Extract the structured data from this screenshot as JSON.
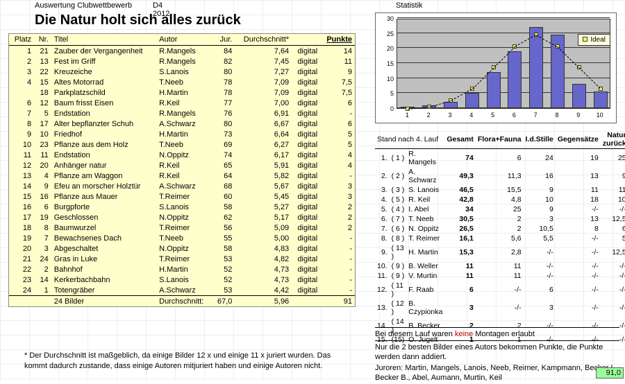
{
  "header": {
    "label": "Auswertung Clubwettbewerb",
    "period": "D4 2012"
  },
  "title": "Die Natur holt sich alles zurück",
  "main": {
    "cols": [
      "Platz",
      "Nr.",
      "Titel",
      "Autor",
      "Jur.",
      "Durchschnitt*",
      "",
      "Punkte"
    ],
    "rows": [
      {
        "p": "1",
        "n": "21",
        "t": "Zauber der Vergangenheit",
        "a": "R.Mangels",
        "j": "84",
        "d": "7,64",
        "m": "digital",
        "pk": "14"
      },
      {
        "p": "2",
        "n": "13",
        "t": "Fest im Griff",
        "a": "R.Mangels",
        "j": "82",
        "d": "7,45",
        "m": "digital",
        "pk": "11"
      },
      {
        "p": "3",
        "n": "22",
        "t": "Kreuzeiche",
        "a": "S.Lanois",
        "j": "80",
        "d": "7,27",
        "m": "digital",
        "pk": "9"
      },
      {
        "p": "4",
        "n": "15",
        "t": "Altes Motorrad",
        "a": "T.Neeb",
        "j": "78",
        "d": "7,09",
        "m": "digital",
        "pk": "7,5"
      },
      {
        "p": "",
        "n": "18",
        "t": "Parkplatzschild",
        "a": "H.Martin",
        "j": "78",
        "d": "7,09",
        "m": "digital",
        "pk": "7,5"
      },
      {
        "p": "6",
        "n": "12",
        "t": "Baum frisst Eisen",
        "a": "R.Keil",
        "j": "77",
        "d": "7,00",
        "m": "digital",
        "pk": "6"
      },
      {
        "p": "7",
        "n": "5",
        "t": "Endstation",
        "a": "R.Mangels",
        "j": "76",
        "d": "6,91",
        "m": "digital",
        "pk": "-"
      },
      {
        "p": "8",
        "n": "17",
        "t": "Alter bepflanzter Schuh",
        "a": "A.Schwarz",
        "j": "80",
        "d": "6,67",
        "m": "digital",
        "pk": "6"
      },
      {
        "p": "9",
        "n": "10",
        "t": "Friedhof",
        "a": "H.Martin",
        "j": "73",
        "d": "6,64",
        "m": "digital",
        "pk": "5"
      },
      {
        "p": "10",
        "n": "23",
        "t": "Pflanze aus dem Holz",
        "a": "T.Neeb",
        "j": "69",
        "d": "6,27",
        "m": "digital",
        "pk": "5"
      },
      {
        "p": "11",
        "n": "11",
        "t": "Endstation",
        "a": "N.Oppitz",
        "j": "74",
        "d": "6,17",
        "m": "digital",
        "pk": "4"
      },
      {
        "p": "12",
        "n": "20",
        "t": "Anhänger natur",
        "a": "R.Keil",
        "j": "65",
        "d": "5,91",
        "m": "digital",
        "pk": "4"
      },
      {
        "p": "13",
        "n": "4",
        "t": "Pflanze am Waggon",
        "a": "R.Keil",
        "j": "64",
        "d": "5,82",
        "m": "digital",
        "pk": "-"
      },
      {
        "p": "14",
        "n": "9",
        "t": "Efeu an morscher Holztür",
        "a": "A.Schwarz",
        "j": "68",
        "d": "5,67",
        "m": "digital",
        "pk": "3"
      },
      {
        "p": "15",
        "n": "16",
        "t": "Pflanze aus Mauer",
        "a": "T.Reimer",
        "j": "60",
        "d": "5,45",
        "m": "digital",
        "pk": "3"
      },
      {
        "p": "16",
        "n": "6",
        "t": "Burgpforte",
        "a": "S.Lanois",
        "j": "58",
        "d": "5,27",
        "m": "digital",
        "pk": "2"
      },
      {
        "p": "17",
        "n": "19",
        "t": "Geschlossen",
        "a": "N.Oppitz",
        "j": "62",
        "d": "5,17",
        "m": "digital",
        "pk": "2"
      },
      {
        "p": "18",
        "n": "8",
        "t": "Baumwurzel",
        "a": "T.Reimer",
        "j": "56",
        "d": "5,09",
        "m": "digital",
        "pk": "2"
      },
      {
        "p": "19",
        "n": "7",
        "t": "Bewachsenes Dach",
        "a": "T.Neeb",
        "j": "55",
        "d": "5,00",
        "m": "digital",
        "pk": "-"
      },
      {
        "p": "20",
        "n": "3",
        "t": "Abgeschaltet",
        "a": "N.Oppitz",
        "j": "58",
        "d": "4,83",
        "m": "digital",
        "pk": "-"
      },
      {
        "p": "21",
        "n": "24",
        "t": "Gras in Luke",
        "a": "T.Reimer",
        "j": "53",
        "d": "4,82",
        "m": "digital",
        "pk": "-"
      },
      {
        "p": "22",
        "n": "2",
        "t": "Bahnhof",
        "a": "H.Martin",
        "j": "52",
        "d": "4,73",
        "m": "digital",
        "pk": "-"
      },
      {
        "p": "23",
        "n": "14",
        "t": "Kerkerbachbahn",
        "a": "S.Lanois",
        "j": "52",
        "d": "4,73",
        "m": "digital",
        "pk": "-"
      },
      {
        "p": "24",
        "n": "1",
        "t": "Totengräber",
        "a": "A.Schwarz",
        "j": "53",
        "d": "4,42",
        "m": "digital",
        "pk": "-"
      }
    ],
    "footer": {
      "count": "24 Bilder",
      "label": "Durchschnitt:",
      "jur": "67,0",
      "d": "5,96",
      "sum": "91"
    },
    "footnote": "* Der Durchschnitt ist maßgeblich, da einige Bilder 12 x und einige 11 x juriert wurden. Das kommt dadurch zustande, dass einige Autoren mitjuriert haben und einige Autoren nicht."
  },
  "chart": {
    "label": "Statistik",
    "type": "bar",
    "ymax": 30,
    "ytick": 5,
    "bars": [
      0.5,
      1,
      2,
      5,
      12,
      19,
      27,
      24.5,
      8,
      5.5
    ],
    "ideal": [
      0.3,
      1,
      3,
      7,
      14,
      21,
      25,
      21,
      14,
      7
    ],
    "x": [
      "1",
      "2",
      "3",
      "4",
      "5",
      "6",
      "7",
      "8",
      "9",
      "10"
    ],
    "bar_color": "#6666cc",
    "plot_bg": "#c0c0c0",
    "ideal_color": "#ffff66",
    "legend": "Ideal"
  },
  "standings": {
    "head_left": "Stand nach 4. Lauf",
    "cols": [
      "Gesamt",
      "Flora+Fauna",
      "I.d.Stille",
      "Gegensätze",
      "Natur zurück"
    ],
    "rows": [
      {
        "r": "1.",
        "pr": "( 1 )",
        "nm": "R. Mangels",
        "g": "74",
        "c1": "6",
        "c2": "24",
        "c3": "19",
        "c4": "25",
        "b": true
      },
      {
        "r": "2.",
        "pr": "( 2 )",
        "nm": "A. Schwarz",
        "g": "49,3",
        "c1": "11,3",
        "c2": "16",
        "c3": "13",
        "c4": "9",
        "b": true
      },
      {
        "r": "3.",
        "pr": "( 3 )",
        "nm": "S. Lanois",
        "g": "46,5",
        "c1": "15,5",
        "c2": "9",
        "c3": "11",
        "c4": "11",
        "b": true
      },
      {
        "r": "4.",
        "pr": "( 5 )",
        "nm": "R. Keil",
        "g": "42,8",
        "c1": "4,8",
        "c2": "10",
        "c3": "18",
        "c4": "10",
        "b": true
      },
      {
        "r": "5.",
        "pr": "( 4 )",
        "nm": "I. Abel",
        "g": "34",
        "c1": "25",
        "c2": "9",
        "c3": "-/-",
        "c4": "-/-",
        "b": true
      },
      {
        "r": "6.",
        "pr": "( 7 )",
        "nm": "T. Neeb",
        "g": "30,5",
        "c1": "2",
        "c2": "3",
        "c3": "13",
        "c4": "12,5",
        "b": true
      },
      {
        "r": "7.",
        "pr": "( 6 )",
        "nm": "N. Oppitz",
        "g": "26,5",
        "c1": "2",
        "c2": "10,5",
        "c3": "8",
        "c4": "6",
        "b": true
      },
      {
        "r": "8.",
        "pr": "( 8 )",
        "nm": "T. Reimer",
        "g": "16,1",
        "c1": "5,6",
        "c2": "5,5",
        "c3": "-/-",
        "c4": "5",
        "b": true
      },
      {
        "r": "9.",
        "pr": "( 13 )",
        "nm": "H. Martin",
        "g": "15,3",
        "c1": "2,8",
        "c2": "-/-",
        "c3": "-/-",
        "c4": "12,5",
        "b": true
      },
      {
        "r": "10.",
        "pr": "( 9 )",
        "nm": "B. Weller",
        "g": "11",
        "c1": "11",
        "c2": "-/-",
        "c3": "-/-",
        "c4": "-/-",
        "b": true
      },
      {
        "r": "11.",
        "pr": "( 9 )",
        "nm": "V. Murtin",
        "g": "11",
        "c1": "11",
        "c2": "-/-",
        "c3": "-/-",
        "c4": "-/-",
        "b": true
      },
      {
        "r": "12.",
        "pr": "( 11 )",
        "nm": "F. Raab",
        "g": "6",
        "c1": "-/-",
        "c2": "6",
        "c3": "-/-",
        "c4": "-/-",
        "b": true
      },
      {
        "r": "13.",
        "pr": "( 12 )",
        "nm": "B. Czypionka",
        "g": "3",
        "c1": "-/-",
        "c2": "3",
        "c3": "-/-",
        "c4": "-/-",
        "b": true
      },
      {
        "r": "14.",
        "pr": "( 14 )",
        "nm": "B. Becker",
        "g": "2",
        "c1": "2",
        "c2": "-/-",
        "c3": "-/-",
        "c4": "-/-",
        "b": true
      },
      {
        "r": "15.",
        "pr": "(15)",
        "nm": "O. Jugelt",
        "g": "1",
        "c1": "1",
        "c2": "-/-",
        "c3": "-/-",
        "c4": "-/-",
        "b": true
      }
    ]
  },
  "notes": {
    "line1a": "Bei diesem Lauf waren ",
    "line1b": "keine",
    "line1c": " Montagen erlaubt",
    "line2": "Nur die 2 besten Bilder eines Autors bekommen Punkte, die Punkte werden dann addiert.",
    "line3": "Juroren: Martin, Mangels, Lanois, Neeb, Reimer, Kampmann, Becker I., Becker B., Abel, Aumann, Murtin, Keil"
  },
  "green": "91,0"
}
